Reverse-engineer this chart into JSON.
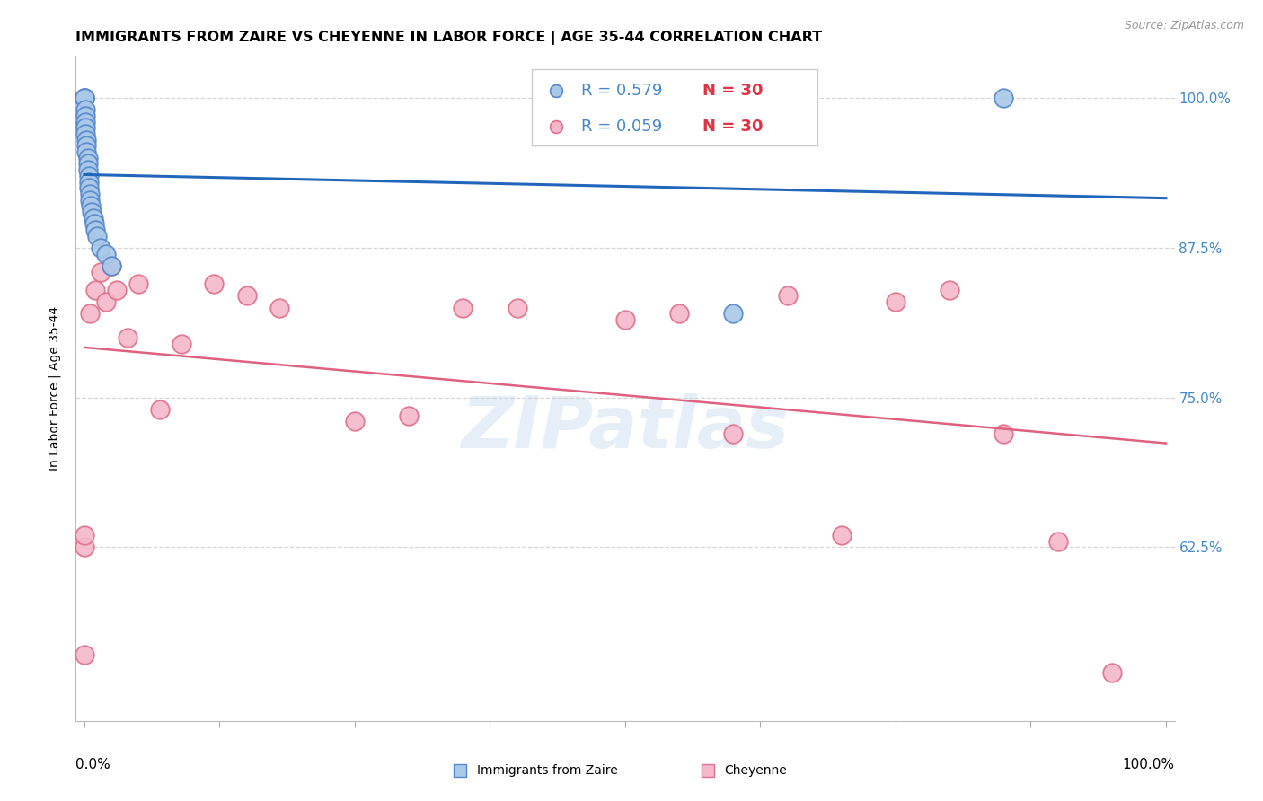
{
  "title": "IMMIGRANTS FROM ZAIRE VS CHEYENNE IN LABOR FORCE | AGE 35-44 CORRELATION CHART",
  "source": "Source: ZipAtlas.com",
  "ylabel": "In Labor Force | Age 35-44",
  "watermark": "ZIPatlas",
  "blue_R": 0.579,
  "blue_N": 30,
  "pink_R": 0.059,
  "pink_N": 30,
  "blue_label": "Immigrants from Zaire",
  "pink_label": "Cheyenne",
  "blue_fill_color": "#aac8e8",
  "pink_fill_color": "#f5b8cb",
  "blue_edge_color": "#5588cc",
  "pink_edge_color": "#e0708a",
  "blue_line_color": "#2266bb",
  "pink_line_color": "#e06080",
  "legend_R_color": "#4488cc",
  "legend_N_color": "#dd3344",
  "ytick_values": [
    0.625,
    0.75,
    0.875,
    1.0
  ],
  "ymin": 0.48,
  "ymax": 1.035,
  "xmin": -0.008,
  "xmax": 1.008,
  "blue_x": [
    0.0,
    0.0,
    0.0,
    0.001,
    0.001,
    0.001,
    0.001,
    0.001,
    0.002,
    0.002,
    0.002,
    0.003,
    0.003,
    0.003,
    0.004,
    0.004,
    0.004,
    0.005,
    0.005,
    0.006,
    0.007,
    0.008,
    0.009,
    0.01,
    0.012,
    0.015,
    0.02,
    0.025,
    0.6,
    0.85
  ],
  "blue_y": [
    1.0,
    1.0,
    1.0,
    0.99,
    0.985,
    0.98,
    0.975,
    0.97,
    0.965,
    0.96,
    0.955,
    0.95,
    0.945,
    0.94,
    0.935,
    0.93,
    0.925,
    0.92,
    0.915,
    0.91,
    0.905,
    0.9,
    0.895,
    0.89,
    0.885,
    0.875,
    0.87,
    0.86,
    0.82,
    1.0
  ],
  "pink_x": [
    0.0,
    0.0,
    0.0,
    0.005,
    0.01,
    0.015,
    0.02,
    0.025,
    0.03,
    0.04,
    0.05,
    0.07,
    0.09,
    0.12,
    0.15,
    0.18,
    0.25,
    0.3,
    0.35,
    0.4,
    0.5,
    0.55,
    0.6,
    0.65,
    0.7,
    0.75,
    0.8,
    0.85,
    0.9,
    0.95
  ],
  "pink_y": [
    0.535,
    0.625,
    0.635,
    0.82,
    0.84,
    0.855,
    0.83,
    0.86,
    0.84,
    0.8,
    0.845,
    0.74,
    0.795,
    0.845,
    0.835,
    0.825,
    0.73,
    0.735,
    0.825,
    0.825,
    0.815,
    0.82,
    0.72,
    0.835,
    0.635,
    0.83,
    0.84,
    0.72,
    0.63,
    0.52
  ],
  "background_color": "#ffffff",
  "grid_color": "#cccccc",
  "title_fontsize": 11.5,
  "axis_label_fontsize": 10,
  "tick_fontsize": 11,
  "source_fontsize": 9
}
